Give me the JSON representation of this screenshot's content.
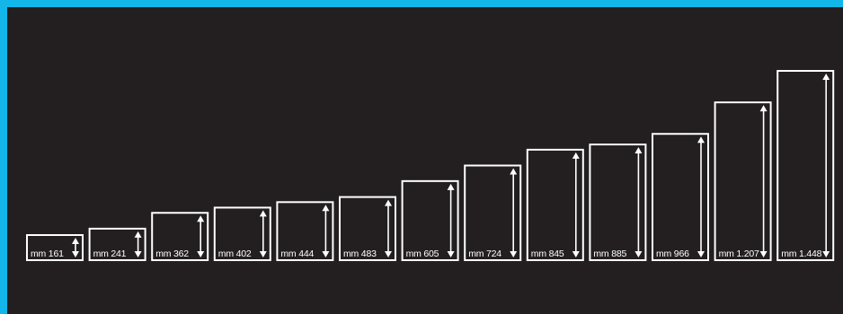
{
  "colors": {
    "background": "#231f20",
    "frame_accent": "#12b6e8",
    "stroke": "#ffffff"
  },
  "chart_data": {
    "type": "bar",
    "unit": "mm",
    "categories": [
      "mm 161",
      "mm 241",
      "mm 362",
      "mm 402",
      "mm 444",
      "mm 483",
      "mm 605",
      "mm 724",
      "mm 845",
      "mm 885",
      "mm 966",
      "mm 1.207",
      "mm 1.448"
    ],
    "values": [
      161,
      241,
      362,
      402,
      444,
      483,
      605,
      724,
      845,
      885,
      966,
      1207,
      1448
    ],
    "title": "",
    "xlabel": "",
    "ylabel": "",
    "grid": false,
    "legend": "none"
  }
}
